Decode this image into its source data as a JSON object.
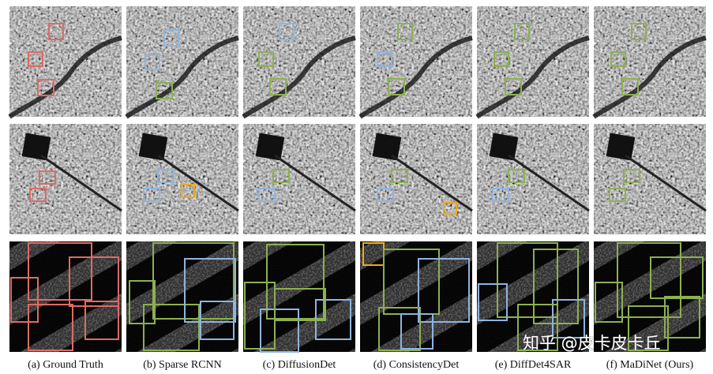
{
  "figure": {
    "captions": [
      "(a) Ground Truth",
      "(b) Sparse RCNN",
      "(c) DiffusionDet",
      "(d) ConsistencyDet",
      "(e) DiffDet4SAR",
      "(f) MaDiNet (Ours)"
    ]
  },
  "watermark": "知乎 @皮卡皮卡丘"
}
